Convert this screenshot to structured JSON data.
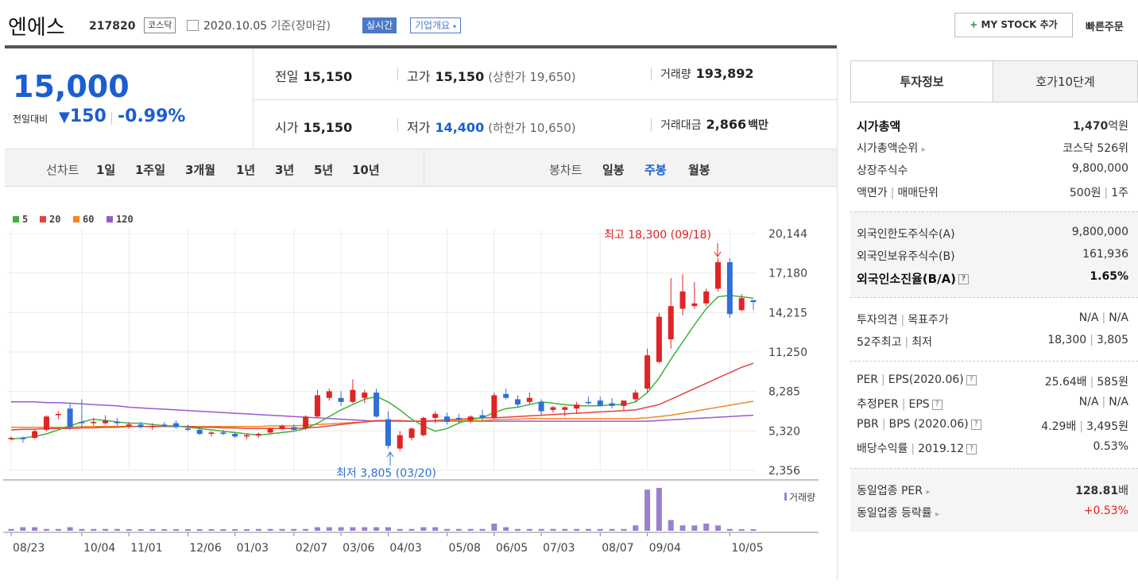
{
  "header": {
    "name": "엔에스",
    "code": "217820",
    "market": "코스닥",
    "date": "2020.10.05",
    "basis": "기준(장마감)",
    "realtime": "실시간",
    "company": "기업개요",
    "my_stock": "MY STOCK 추가",
    "my_stock_plus": "+",
    "quick_order": "빠른주문"
  },
  "price": {
    "current": "15,000",
    "compare_label": "전일대비",
    "change": "150",
    "change_pct": "-0.99%",
    "prev_label": "전일",
    "prev": "15,150",
    "high_label": "고가",
    "high": "15,150",
    "upper_limit": "(상한가 19,650)",
    "volume_label": "거래량",
    "volume": "193,892",
    "open_label": "시가",
    "open": "15,150",
    "low_label": "저가",
    "low": "14,400",
    "lower_limit": "(하한가 10,650)",
    "amount_label": "거래대금",
    "amount": "2,866",
    "amount_unit": "백만"
  },
  "period": {
    "line_label": "선차트",
    "line_items": [
      "1일",
      "1주일",
      "3개월",
      "1년",
      "3년",
      "5년",
      "10년"
    ],
    "candle_label": "봉차트",
    "candle_items": [
      "일봉",
      "주봉",
      "월봉"
    ],
    "selected_candle": "주봉"
  },
  "chart_data": {
    "type": "candlestick",
    "legend": [
      "5",
      "20",
      "60",
      "120"
    ],
    "colors": {
      "ma5": "#3cb33c",
      "ma20": "#e84040",
      "ma60": "#f08a1c",
      "ma120": "#9b59d0",
      "up": "#e02424",
      "down": "#2f6fd6",
      "volume": "#9b7fd0"
    },
    "y_ticks": [
      "20,144",
      "17,180",
      "14,215",
      "11,250",
      "8,285",
      "5,320",
      "2,356"
    ],
    "ylim": [
      2356,
      20144
    ],
    "x_ticks": [
      "08/23",
      "10/04",
      "11/01",
      "12/06",
      "01/03",
      "02/07",
      "03/06",
      "04/03",
      "05/08",
      "06/05",
      "07/03",
      "08/07",
      "09/04",
      "10/05"
    ],
    "high_annotation": "최고 18,300 (09/18)",
    "low_annotation": "최저 3,805 (03/20)",
    "volume_label": "거래량",
    "candles": [
      [
        4700,
        4900,
        4600,
        4800
      ],
      [
        4800,
        4900,
        4450,
        4700
      ],
      [
        4800,
        5400,
        4700,
        5300
      ],
      [
        5400,
        6500,
        5300,
        6400
      ],
      [
        6500,
        6800,
        6200,
        6600
      ],
      [
        7000,
        7400,
        5400,
        5600
      ],
      [
        6000,
        7700,
        5500,
        5900
      ],
      [
        5900,
        6300,
        5700,
        6000
      ],
      [
        5900,
        6500,
        5800,
        6100
      ],
      [
        6000,
        6300,
        5700,
        5900
      ],
      [
        5700,
        6000,
        5500,
        5800
      ],
      [
        5800,
        6000,
        5500,
        5600
      ],
      [
        5600,
        5900,
        5400,
        5700
      ],
      [
        5800,
        6000,
        5600,
        5700
      ],
      [
        5900,
        6100,
        5500,
        5600
      ],
      [
        5500,
        5800,
        5300,
        5400
      ],
      [
        5400,
        5600,
        5000,
        5100
      ],
      [
        5100,
        5300,
        4900,
        5200
      ],
      [
        5200,
        5400,
        5000,
        5100
      ],
      [
        5100,
        5200,
        4800,
        4900
      ],
      [
        4900,
        5100,
        4700,
        5000
      ],
      [
        5000,
        5200,
        4800,
        5100
      ],
      [
        5200,
        5600,
        5100,
        5500
      ],
      [
        5500,
        5800,
        5400,
        5700
      ],
      [
        5600,
        5800,
        5300,
        5400
      ],
      [
        5500,
        6500,
        5400,
        6400
      ],
      [
        6400,
        8400,
        6300,
        8000
      ],
      [
        7800,
        8500,
        7600,
        8300
      ],
      [
        7800,
        8300,
        7200,
        7500
      ],
      [
        7500,
        9200,
        7400,
        8400
      ],
      [
        7800,
        8400,
        7400,
        8200
      ],
      [
        8200,
        8500,
        6300,
        6400
      ],
      [
        6200,
        6800,
        4000,
        4200
      ],
      [
        4000,
        5300,
        3805,
        5000
      ],
      [
        4800,
        5600,
        4600,
        5500
      ],
      [
        5000,
        6400,
        4900,
        6300
      ],
      [
        6300,
        6800,
        5900,
        6600
      ],
      [
        6400,
        6700,
        5800,
        6000
      ],
      [
        6300,
        6600,
        5900,
        6200
      ],
      [
        6100,
        6500,
        5900,
        6400
      ],
      [
        6500,
        6900,
        6100,
        6300
      ],
      [
        6300,
        8200,
        6200,
        8000
      ],
      [
        8100,
        8500,
        7700,
        7800
      ],
      [
        7700,
        8000,
        7100,
        7300
      ],
      [
        7500,
        8200,
        7300,
        7800
      ],
      [
        7500,
        7700,
        6500,
        6800
      ],
      [
        6900,
        7200,
        6700,
        7100
      ],
      [
        6900,
        7200,
        6400,
        7100
      ],
      [
        7000,
        7500,
        6600,
        7300
      ],
      [
        7500,
        7900,
        7300,
        7400
      ],
      [
        7600,
        7900,
        7300,
        7200
      ],
      [
        7400,
        7800,
        7000,
        7200
      ],
      [
        7200,
        7500,
        6900,
        7600
      ],
      [
        7700,
        8400,
        7500,
        8200
      ],
      [
        8500,
        11500,
        8200,
        11000
      ],
      [
        10500,
        14200,
        10400,
        13900
      ],
      [
        12200,
        16800,
        11500,
        14700
      ],
      [
        14500,
        17100,
        14000,
        15800
      ],
      [
        14700,
        16500,
        14500,
        14900
      ],
      [
        14900,
        16000,
        14700,
        15800
      ],
      [
        16000,
        18300,
        15800,
        18000
      ],
      [
        18000,
        18300,
        13800,
        14100
      ],
      [
        14400,
        15600,
        14300,
        15300
      ],
      [
        15150,
        15150,
        14400,
        15000
      ]
    ],
    "ma5": [
      4700,
      4800,
      4900,
      5100,
      5400,
      5700,
      6000,
      6200,
      6100,
      6000,
      5900,
      5900,
      5800,
      5700,
      5700,
      5600,
      5500,
      5400,
      5300,
      5200,
      5100,
      5000,
      5100,
      5200,
      5300,
      5500,
      5900,
      6400,
      6900,
      7300,
      7700,
      7900,
      7500,
      6900,
      6200,
      5700,
      5300,
      5500,
      5900,
      6200,
      6300,
      6700,
      7000,
      7100,
      7300,
      7500,
      7400,
      7300,
      7200,
      7200,
      7200,
      7300,
      7300,
      7500,
      8200,
      9300,
      10700,
      12000,
      13300,
      14500,
      15400,
      15500,
      15400,
      15300
    ],
    "ma20": [
      5400,
      5450,
      5450,
      5500,
      5500,
      5500,
      5550,
      5550,
      5600,
      5600,
      5650,
      5650,
      5650,
      5650,
      5650,
      5650,
      5600,
      5600,
      5550,
      5550,
      5500,
      5500,
      5500,
      5500,
      5500,
      5550,
      5600,
      5700,
      5800,
      5900,
      6000,
      6100,
      6100,
      6100,
      6050,
      6050,
      6100,
      6150,
      6200,
      6250,
      6300,
      6300,
      6350,
      6400,
      6450,
      6500,
      6550,
      6600,
      6650,
      6700,
      6750,
      6800,
      6850,
      6900,
      7100,
      7300,
      7700,
      8100,
      8500,
      8900,
      9300,
      9700,
      10100,
      10400
    ],
    "ma60": [
      5600,
      5600,
      5600,
      5600,
      5600,
      5600,
      5650,
      5650,
      5650,
      5650,
      5650,
      5650,
      5650,
      5650,
      5650,
      5650,
      5650,
      5650,
      5650,
      5650,
      5650,
      5650,
      5700,
      5700,
      5700,
      5750,
      5800,
      5850,
      5900,
      5950,
      6000,
      6050,
      6050,
      6050,
      6050,
      6050,
      6050,
      6050,
      6100,
      6100,
      6100,
      6150,
      6200,
      6200,
      6250,
      6250,
      6250,
      6250,
      6250,
      6250,
      6250,
      6250,
      6250,
      6250,
      6300,
      6400,
      6500,
      6650,
      6800,
      6950,
      7100,
      7250,
      7400,
      7550
    ],
    "ma120": [
      7500,
      7500,
      7500,
      7450,
      7450,
      7400,
      7350,
      7300,
      7250,
      7200,
      7100,
      7050,
      7000,
      6950,
      6900,
      6850,
      6800,
      6750,
      6700,
      6650,
      6600,
      6550,
      6500,
      6450,
      6400,
      6350,
      6300,
      6250,
      6200,
      6150,
      6100,
      6050,
      6050,
      6050,
      6050,
      6050,
      6050,
      6050,
      6050,
      6050,
      6050,
      6050,
      6050,
      6050,
      6050,
      6050,
      6050,
      6050,
      6050,
      6050,
      6050,
      6050,
      6050,
      6050,
      6050,
      6100,
      6150,
      6200,
      6250,
      6300,
      6350,
      6400,
      6450,
      6500
    ],
    "volume": [
      1,
      2,
      2,
      1,
      1,
      2,
      1,
      1,
      1,
      1,
      0,
      0,
      0,
      0,
      0,
      0,
      0,
      0,
      0,
      0,
      0,
      1,
      1,
      1,
      1,
      1,
      2,
      2,
      2,
      2,
      2,
      2,
      2,
      1,
      1,
      2,
      2,
      1,
      1,
      1,
      1,
      4,
      2,
      1,
      1,
      1,
      1,
      1,
      1,
      1,
      1,
      1,
      1,
      3,
      23,
      24,
      6,
      3,
      3,
      4,
      3,
      1,
      0,
      0
    ]
  },
  "side": {
    "tab_info": "투자정보",
    "tab_hoga": "호가10단계",
    "sec1": [
      {
        "k": "시가총액",
        "v": "1,470",
        "u": "억원"
      },
      {
        "k": "시가총액순위",
        "v": "코스닥 526위"
      },
      {
        "k": "상장주식수",
        "v": "9,800,000"
      },
      {
        "k": "액면가",
        "k2": "매매단위",
        "v": "500원",
        "v2": "1주"
      }
    ],
    "sec2": [
      {
        "k": "외국인한도주식수(A)",
        "v": "9,800,000"
      },
      {
        "k": "외국인보유주식수(B)",
        "v": "161,936"
      },
      {
        "k": "외국인소진율(B/A)",
        "v": "1.65%"
      }
    ],
    "sec3": [
      {
        "k": "투자의견",
        "k2": "목표주가",
        "v": "N/A",
        "v2": "N/A"
      },
      {
        "k": "52주최고",
        "k2": "최저",
        "v": "18,300",
        "v2": "3,805"
      }
    ],
    "sec4": [
      {
        "k": "PER",
        "k2": "EPS(2020.06)",
        "v": "25.64배",
        "v2": "585원"
      },
      {
        "k": "추정PER",
        "k2": "EPS",
        "v": "N/A",
        "v2": "N/A"
      },
      {
        "k": "PBR",
        "k2": "BPS (2020.06)",
        "v": "4.29배",
        "v2": "3,495원"
      },
      {
        "k": "배당수익률",
        "k2": "2019.12",
        "v": "0.53%"
      }
    ],
    "sec5": [
      {
        "k": "동일업종 PER",
        "v": "128.81",
        "u": "배"
      },
      {
        "k": "동일업종 등락률",
        "v": "+0.53%"
      }
    ]
  }
}
